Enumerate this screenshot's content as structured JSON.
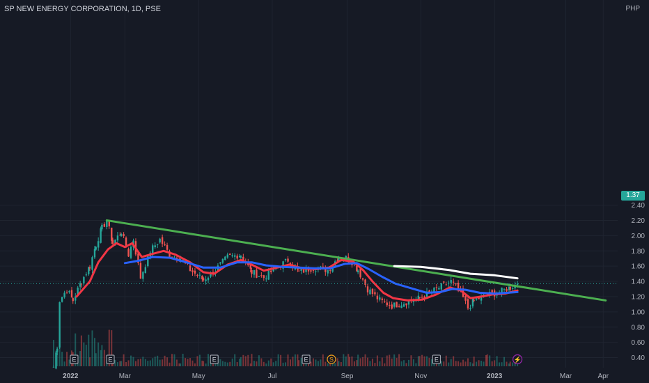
{
  "header": {
    "title": "SP NEW ENERGY CORPORATION, 1D, PSE",
    "currency": "PHP"
  },
  "last_price_label": "1.37",
  "colors": {
    "background": "#161a25",
    "grid": "#1f2430",
    "up": "#26a69a",
    "down": "#ef5350",
    "trendline": "#4caf50",
    "ma_fast": "#f23645",
    "ma_slow": "#2962ff",
    "white_line": "#ffffff",
    "axis_text": "#b2b5be",
    "dividend": "#f7a21b",
    "split": "#9c27b0"
  },
  "chart_data": {
    "type": "candlestick",
    "title": "SP NEW ENERGY CORPORATION, 1D, PSE",
    "ylabel": "PHP",
    "ylim": [
      0.3,
      2.55
    ],
    "y_ticks": [
      "2.40",
      "2.20",
      "2.00",
      "1.80",
      "1.60",
      "1.40",
      "1.20",
      "1.00",
      "0.80",
      "0.60",
      "0.40"
    ],
    "x_ticks": [
      "2022",
      "Mar",
      "May",
      "Jul",
      "Sep",
      "Nov",
      "2023",
      "Mar",
      "Apr"
    ],
    "last_price": 1.37,
    "price_path": [
      [
        "2022-01-01",
        0.28
      ],
      [
        "2022-01-04",
        0.55
      ],
      [
        "2022-01-06",
        1.15
      ],
      [
        "2022-01-12",
        1.3
      ],
      [
        "2022-01-17",
        1.15
      ],
      [
        "2022-01-24",
        1.4
      ],
      [
        "2022-01-31",
        1.6
      ],
      [
        "2022-02-05",
        1.88
      ],
      [
        "2022-02-10",
        2.1
      ],
      [
        "2022-02-14",
        2.2
      ],
      [
        "2022-02-19",
        1.9
      ],
      [
        "2022-02-26",
        2.05
      ],
      [
        "2022-03-04",
        1.75
      ],
      [
        "2022-03-08",
        1.95
      ],
      [
        "2022-03-14",
        1.45
      ],
      [
        "2022-03-22",
        1.8
      ],
      [
        "2022-03-30",
        1.95
      ],
      [
        "2022-04-07",
        1.75
      ],
      [
        "2022-04-16",
        1.7
      ],
      [
        "2022-04-24",
        1.55
      ],
      [
        "2022-05-05",
        1.42
      ],
      [
        "2022-05-15",
        1.55
      ],
      [
        "2022-05-25",
        1.72
      ],
      [
        "2022-06-05",
        1.75
      ],
      [
        "2022-06-14",
        1.52
      ],
      [
        "2022-06-24",
        1.45
      ],
      [
        "2022-07-02",
        1.55
      ],
      [
        "2022-07-14",
        1.68
      ],
      [
        "2022-07-23",
        1.52
      ],
      [
        "2022-08-04",
        1.58
      ],
      [
        "2022-08-16",
        1.55
      ],
      [
        "2022-08-25",
        1.72
      ],
      [
        "2022-09-03",
        1.7
      ],
      [
        "2022-09-10",
        1.55
      ],
      [
        "2022-09-18",
        1.3
      ],
      [
        "2022-09-28",
        1.15
      ],
      [
        "2022-10-08",
        1.08
      ],
      [
        "2022-10-18",
        1.12
      ],
      [
        "2022-10-31",
        1.18
      ],
      [
        "2022-11-14",
        1.3
      ],
      [
        "2022-11-26",
        1.4
      ],
      [
        "2022-12-04",
        1.25
      ],
      [
        "2022-12-10",
        1.05
      ],
      [
        "2022-12-15",
        1.15
      ],
      [
        "2022-12-26",
        1.22
      ],
      [
        "2023-01-05",
        1.26
      ],
      [
        "2023-01-14",
        1.32
      ],
      [
        "2023-01-20",
        1.37
      ]
    ],
    "series": [
      {
        "name": "",
        "color": "#4caf50",
        "style": "trendline",
        "points": [
          [
            "2022-02-14",
            2.2
          ],
          [
            "2023-04-03",
            1.15
          ]
        ]
      },
      {
        "name": "",
        "color": "#ffffff",
        "style": "line",
        "points": [
          [
            "2022-10-10",
            1.6
          ],
          [
            "2022-11-01",
            1.59
          ],
          [
            "2022-11-24",
            1.55
          ],
          [
            "2022-12-12",
            1.5
          ],
          [
            "2023-01-01",
            1.48
          ],
          [
            "2023-01-20",
            1.44
          ]
        ]
      },
      {
        "name": "",
        "color": "#f23645",
        "style": "moving-average",
        "points": [
          [
            "2022-01-20",
            1.2
          ],
          [
            "2022-01-31",
            1.4
          ],
          [
            "2022-02-07",
            1.65
          ],
          [
            "2022-02-15",
            1.82
          ],
          [
            "2022-02-22",
            1.9
          ],
          [
            "2022-03-01",
            1.85
          ],
          [
            "2022-03-07",
            1.9
          ],
          [
            "2022-03-15",
            1.72
          ],
          [
            "2022-03-24",
            1.76
          ],
          [
            "2022-04-02",
            1.8
          ],
          [
            "2022-04-12",
            1.75
          ],
          [
            "2022-04-24",
            1.65
          ],
          [
            "2022-05-05",
            1.52
          ],
          [
            "2022-05-14",
            1.5
          ],
          [
            "2022-05-25",
            1.62
          ],
          [
            "2022-06-05",
            1.68
          ],
          [
            "2022-06-14",
            1.62
          ],
          [
            "2022-06-24",
            1.54
          ],
          [
            "2022-07-05",
            1.58
          ],
          [
            "2022-07-15",
            1.62
          ],
          [
            "2022-07-26",
            1.57
          ],
          [
            "2022-08-06",
            1.56
          ],
          [
            "2022-08-17",
            1.58
          ],
          [
            "2022-08-27",
            1.68
          ],
          [
            "2022-09-06",
            1.66
          ],
          [
            "2022-09-14",
            1.55
          ],
          [
            "2022-09-22",
            1.4
          ],
          [
            "2022-10-01",
            1.25
          ],
          [
            "2022-10-09",
            1.18
          ],
          [
            "2022-10-21",
            1.15
          ],
          [
            "2022-11-02",
            1.16
          ],
          [
            "2022-11-14",
            1.23
          ],
          [
            "2022-11-25",
            1.32
          ],
          [
            "2022-12-04",
            1.28
          ],
          [
            "2022-12-12",
            1.18
          ],
          [
            "2022-12-21",
            1.2
          ],
          [
            "2022-12-31",
            1.23
          ],
          [
            "2023-01-10",
            1.24
          ],
          [
            "2023-01-20",
            1.28
          ]
        ]
      },
      {
        "name": "",
        "color": "#2962ff",
        "style": "moving-average",
        "points": [
          [
            "2022-03-01",
            1.64
          ],
          [
            "2022-03-12",
            1.67
          ],
          [
            "2022-03-24",
            1.72
          ],
          [
            "2022-04-07",
            1.71
          ],
          [
            "2022-04-21",
            1.65
          ],
          [
            "2022-05-05",
            1.58
          ],
          [
            "2022-05-19",
            1.58
          ],
          [
            "2022-06-02",
            1.65
          ],
          [
            "2022-06-14",
            1.65
          ],
          [
            "2022-06-26",
            1.61
          ],
          [
            "2022-07-10",
            1.59
          ],
          [
            "2022-07-23",
            1.58
          ],
          [
            "2022-08-05",
            1.57
          ],
          [
            "2022-08-18",
            1.57
          ],
          [
            "2022-08-30",
            1.63
          ],
          [
            "2022-09-09",
            1.64
          ],
          [
            "2022-09-19",
            1.56
          ],
          [
            "2022-09-30",
            1.46
          ],
          [
            "2022-10-11",
            1.37
          ],
          [
            "2022-10-24",
            1.31
          ],
          [
            "2022-11-06",
            1.25
          ],
          [
            "2022-11-17",
            1.26
          ],
          [
            "2022-11-27",
            1.3
          ],
          [
            "2022-12-08",
            1.29
          ],
          [
            "2022-12-20",
            1.25
          ],
          [
            "2023-01-02",
            1.24
          ],
          [
            "2023-01-20",
            1.26
          ]
        ]
      }
    ],
    "events": [
      {
        "label": "E",
        "date": "2022-01-18"
      },
      {
        "label": "E",
        "date": "2022-02-17"
      },
      {
        "label": "E",
        "date": "2022-05-14"
      },
      {
        "label": "E",
        "date": "2022-07-29"
      },
      {
        "label": "S",
        "date": "2022-08-19"
      },
      {
        "label": "E",
        "date": "2022-11-14"
      },
      {
        "label": "⚡",
        "date": "2023-01-20"
      }
    ]
  }
}
